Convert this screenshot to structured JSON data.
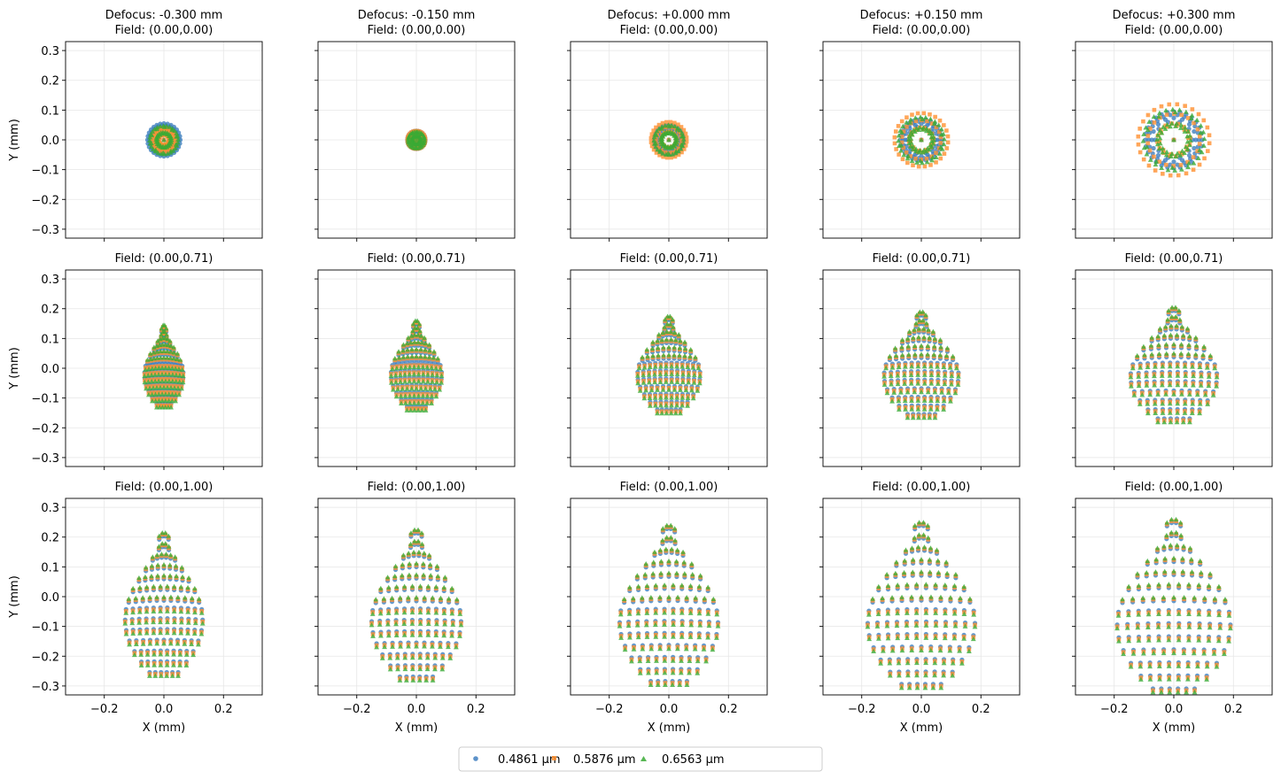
{
  "chart_data": {
    "type": "scatter",
    "layout": {
      "rows": 3,
      "cols": 5,
      "sharex": true,
      "sharey": true
    },
    "defocus_titles": [
      "Defocus: -0.300 mm",
      "Defocus: -0.150 mm",
      "Defocus: +0.000 mm",
      "Defocus: +0.150 mm",
      "Defocus: +0.300 mm"
    ],
    "field_titles": [
      "Field: (0.00,0.00)",
      "Field: (0.00,0.71)",
      "Field: (0.00,1.00)"
    ],
    "defocus_mm": [
      -0.3,
      -0.15,
      0.0,
      0.15,
      0.3
    ],
    "field_y": [
      0.0,
      0.71,
      1.0
    ],
    "xlabel": "X (mm)",
    "ylabel": "Y (mm)",
    "xlim": [
      -0.33,
      0.33
    ],
    "ylim": [
      -0.33,
      0.33
    ],
    "xticks": [
      -0.2,
      0.0,
      0.2
    ],
    "xtick_labels": [
      "−0.2",
      "0.0",
      "0.2"
    ],
    "yticks": [
      0.3,
      0.2,
      0.1,
      0.0,
      -0.1,
      -0.2,
      -0.3
    ],
    "ytick_labels": [
      "0.3",
      "0.2",
      "0.1",
      "0.0",
      "−0.1",
      "−0.2",
      "−0.3"
    ],
    "grid": true,
    "legend": {
      "placement": "bottom-center",
      "ncol": 3
    },
    "series": [
      {
        "name": "0.4861 µm",
        "marker": "circle",
        "color": "#3f7fbf"
      },
      {
        "name": "0.5876 µm",
        "marker": "square",
        "color": "#ff9030"
      },
      {
        "name": "0.6563 µm",
        "marker": "triangle",
        "color": "#3aaa35"
      }
    ],
    "spot_extents": {
      "note_values_in_mm": true,
      "on_axis_radius": [
        [
          0.055,
          0.04,
          0.065
        ],
        [
          0.03,
          0.03,
          0.038
        ],
        [
          0.05,
          0.06,
          0.068
        ],
        [
          0.07,
          0.09,
          0.105
        ],
        [
          0.095,
          0.12,
          0.14
        ]
      ],
      "field_0_71": [
        {
          "half_width": 0.065,
          "y_top": 0.14,
          "y_bottom": -0.125
        },
        {
          "half_width": 0.085,
          "y_top": 0.155,
          "y_bottom": -0.135
        },
        {
          "half_width": 0.105,
          "y_top": 0.17,
          "y_bottom": -0.145
        },
        {
          "half_width": 0.125,
          "y_top": 0.185,
          "y_bottom": -0.16
        },
        {
          "half_width": 0.145,
          "y_top": 0.2,
          "y_bottom": -0.175
        }
      ],
      "field_1_00": [
        {
          "half_width": 0.13,
          "y_top": 0.21,
          "y_bottom": -0.26
        },
        {
          "half_width": 0.15,
          "y_top": 0.22,
          "y_bottom": -0.275
        },
        {
          "half_width": 0.165,
          "y_top": 0.235,
          "y_bottom": -0.29
        },
        {
          "half_width": 0.18,
          "y_top": 0.245,
          "y_bottom": -0.3
        },
        {
          "half_width": 0.19,
          "y_top": 0.255,
          "y_bottom": -0.315
        }
      ]
    }
  }
}
